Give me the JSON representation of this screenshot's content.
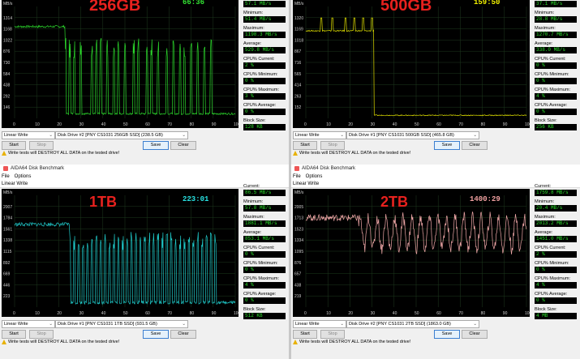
{
  "common": {
    "window_title": "AIDA64 Disk Benchmark",
    "menu": [
      "File",
      "Options"
    ],
    "test_select": "Linear Write",
    "start_label": "Start",
    "stop_label": "Stop",
    "save_label": "Save",
    "clear_label": "Clear",
    "warning": "Write tests will DESTROY ALL DATA on the tested drive!",
    "stat_labels": {
      "current": "Current:",
      "minimum": "Minimum:",
      "maximum": "Maximum:",
      "average": "Average:",
      "cpu_current": "CPU% Current:",
      "cpu_minimum": "CPU% Minimum:",
      "cpu_maximum": "CPU% Maximum:",
      "cpu_average": "CPU% Average:",
      "block_size": "Block Size:"
    },
    "mbs_unit": "MB/s"
  },
  "panels": [
    {
      "capacity": "256GB",
      "timer": "66:36",
      "timer_color": "#32e032",
      "line_color": "#2bd62b",
      "drive": "Disk Drive #2  [PNY CS1031 256GB SSD]  (238.5 GB)",
      "current": "57.1 MB/s",
      "minimum": "51.4 MB/s",
      "maximum": "1198.3 MB/s",
      "average": "529.8 MB/s",
      "cpu_current": "2 %",
      "cpu_minimum": "0 %",
      "cpu_maximum": "3 %",
      "cpu_average": "0 %",
      "block_size": "128 KB",
      "y_ticks": [
        "1314",
        "1168",
        "1022",
        "876",
        "730",
        "584",
        "438",
        "292",
        "146"
      ],
      "x_ticks": [
        "0",
        "10",
        "20",
        "30",
        "40",
        "50",
        "60",
        "70",
        "80",
        "90",
        "100 %"
      ],
      "chart_data": {
        "type": "line",
        "ylim": [
          0,
          1460
        ],
        "xlim": [
          0,
          100
        ],
        "baseline": 1198,
        "drop_at": 23,
        "floor": 60,
        "spikes": [
          23,
          25,
          27,
          30,
          35,
          37,
          39,
          42,
          45,
          47,
          50,
          54,
          56,
          60,
          62,
          65,
          69,
          72,
          75,
          77,
          80,
          83,
          86,
          89
        ],
        "spike_high": 1050,
        "noise": 60
      }
    },
    {
      "capacity": "500GB",
      "timer": "159:50",
      "timer_color": "#f0f000",
      "line_color": "#e0e000",
      "drive": "Disk Drive #1  [PNY CS1031 500GB SSD]  (465.8 GB)",
      "current": "37.1 MB/s",
      "minimum": "28.8 MB/s",
      "maximum": "1270.7 MB/s",
      "average": "338.0 MB/s",
      "cpu_current": "0 %",
      "cpu_minimum": "0 %",
      "cpu_maximum": "4 %",
      "cpu_average": "0 %",
      "block_size": "256 KB",
      "y_ticks": [
        "1320",
        "1169",
        "1018",
        "867",
        "716",
        "565",
        "414",
        "263",
        "152"
      ],
      "x_ticks": [
        "0",
        "10",
        "20",
        "30",
        "40",
        "50",
        "60",
        "70",
        "80",
        "90",
        "100 %"
      ],
      "chart_data": {
        "type": "line",
        "ylim": [
          0,
          1470
        ],
        "xlim": [
          0,
          100
        ],
        "baseline": 1150,
        "drop_at": 31,
        "floor": 40,
        "spikes": [
          7,
          12,
          18,
          22,
          26,
          30
        ],
        "spike_high": 1320,
        "noise": 30
      }
    },
    {
      "capacity": "1TB",
      "timer": "223:01",
      "timer_color": "#28e0e0",
      "line_color": "#1fc8c8",
      "drive": "Disk Drive #1  [PNY CS1031 1TB SSD]  (931.5 GB)",
      "current": "86.5 MB/s",
      "minimum": "57.8 MB/s",
      "maximum": "1881.1 MB/s",
      "average": "853.1 MB/s",
      "cpu_current": "0 %",
      "cpu_minimum": "0 %",
      "cpu_maximum": "4 %",
      "cpu_average": "0 %",
      "block_size": "512 KB",
      "y_ticks": [
        "2007",
        "1784",
        "1561",
        "1338",
        "1115",
        "892",
        "669",
        "446",
        "223"
      ],
      "x_ticks": [
        "0",
        "10",
        "20",
        "30",
        "40",
        "50",
        "60",
        "70",
        "80",
        "90",
        "100 %"
      ],
      "chart_data": {
        "type": "line",
        "ylim": [
          0,
          2230
        ],
        "xlim": [
          0,
          100
        ],
        "baseline": 1650,
        "drop_at": 25,
        "floor": 90,
        "spikes": [
          25,
          27,
          29,
          31,
          33,
          35,
          37,
          39,
          41,
          43,
          45,
          47,
          49,
          51,
          53,
          55,
          57,
          59,
          61,
          63,
          65,
          67,
          69,
          71,
          73,
          75,
          77,
          79,
          81,
          83,
          85,
          87,
          89,
          91
        ],
        "spike_high": 1500,
        "noise": 150
      }
    },
    {
      "capacity": "2TB",
      "timer": "1400:29",
      "timer_color": "#f0a0a0",
      "line_color": "#f0a8a8",
      "drive": "Disk Drive #2  [PNY CS1031 2TB SSD]  (1863.0 GB)",
      "current": "1759.8 MB/s",
      "minimum": "20.4 MB/s",
      "maximum": "2013.2 MB/s",
      "average": "1451.0 MB/s",
      "cpu_current": "2 %",
      "cpu_minimum": "0 %",
      "cpu_maximum": "4 %",
      "cpu_average": "0 %",
      "block_size": "4 MB",
      "y_ticks": [
        "2005",
        "1713",
        "1523",
        "1334",
        "1095",
        "876",
        "657",
        "438",
        "219"
      ],
      "x_ticks": [
        "0",
        "10",
        "20",
        "30",
        "40",
        "50",
        "60",
        "70",
        "80",
        "90",
        "100 %"
      ],
      "chart_data": {
        "type": "line",
        "ylim": [
          0,
          2190
        ],
        "xlim": [
          0,
          100
        ],
        "baseline": 1750,
        "drop_at": 24,
        "floor": 1150,
        "spikes": [],
        "spike_high": 1900,
        "noise": 250,
        "oscillate": true
      }
    }
  ]
}
